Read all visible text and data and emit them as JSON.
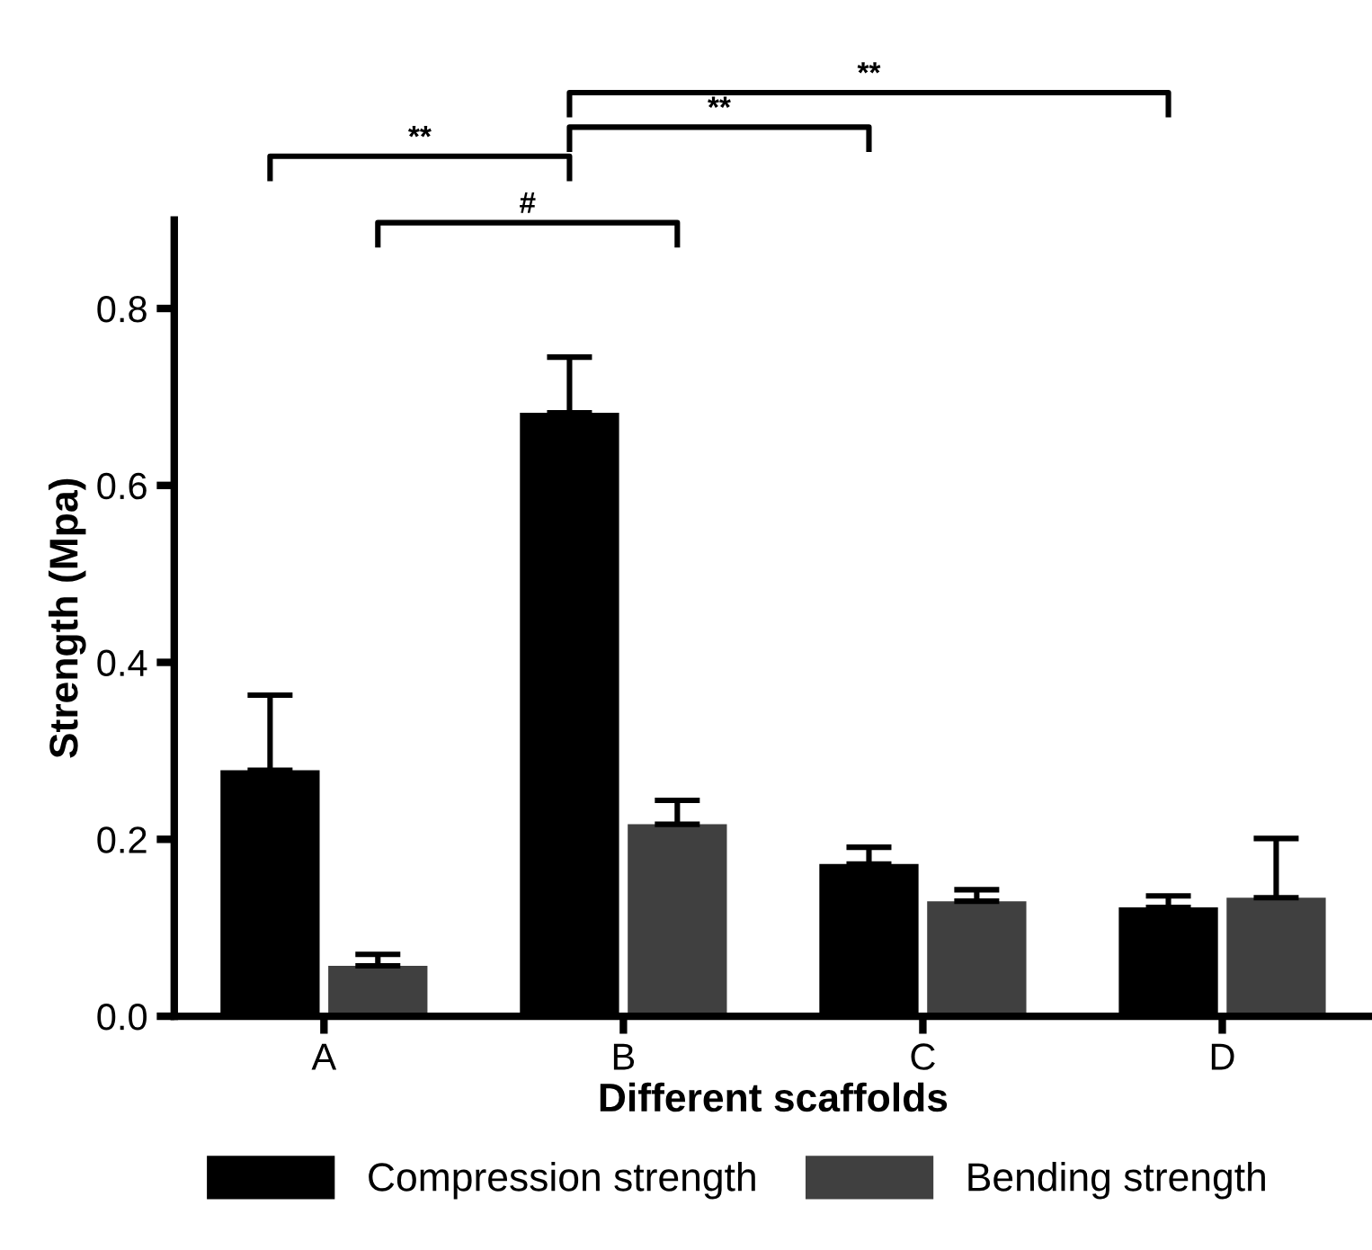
{
  "chart_data": {
    "type": "bar",
    "xlabel": "Different scaffolds",
    "ylabel": "Strength (Mpa)",
    "categories": [
      "A",
      "B",
      "C",
      "D"
    ],
    "series": [
      {
        "name": "Compression strength",
        "color": "#000000",
        "values": [
          0.278,
          0.682,
          0.172,
          0.123
        ],
        "errors": [
          [
            0.278,
            0.363
          ],
          [
            0.682,
            0.745
          ],
          [
            0.172,
            0.191
          ],
          [
            0.123,
            0.136
          ]
        ]
      },
      {
        "name": "Bending strength",
        "color": "#404040",
        "values": [
          0.057,
          0.217,
          0.13,
          0.134
        ],
        "errors": [
          [
            0.057,
            0.07
          ],
          [
            0.217,
            0.244
          ],
          [
            0.13,
            0.143
          ],
          [
            0.134,
            0.201
          ]
        ]
      }
    ],
    "ylim": [
      0,
      0.9
    ],
    "yticks": [
      {
        "value": 0,
        "label": "0.0"
      },
      0.2,
      0.4,
      0.6,
      0.8
    ],
    "grid": false,
    "legend": "bottom",
    "annotations": [
      "**",
      "#",
      "**",
      "**"
    ]
  }
}
